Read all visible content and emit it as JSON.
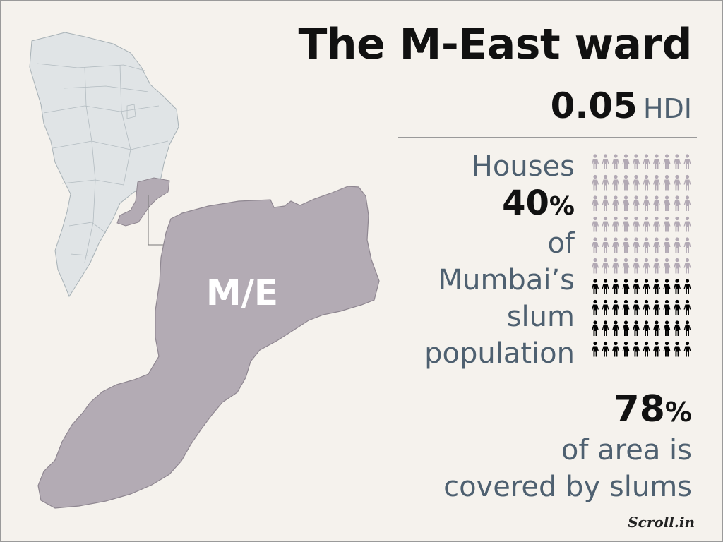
{
  "title": "The M-East ward",
  "hdi": {
    "value": "0.05",
    "label": "HDI"
  },
  "houses": {
    "heading": "Houses",
    "percent": "40",
    "percent_sign": "%",
    "lines": [
      "of",
      "Mumbai’s",
      "slum",
      "population"
    ],
    "icon_grid": {
      "rows": 10,
      "cols": 10,
      "highlighted_fraction": 0.4
    }
  },
  "area": {
    "percent": "78",
    "percent_sign": "%",
    "lines": [
      "of area is",
      "covered by slums"
    ]
  },
  "map": {
    "ward_label": "M/E"
  },
  "brand": "Scroll.in",
  "colors": {
    "background": "#f5f2ed",
    "city_fill": "#e0e4e6",
    "ward_fill": "#b3abb4",
    "highlight_icon": "#000000",
    "muted_icon": "#b2a9b4",
    "text_muted": "#4e6070"
  }
}
